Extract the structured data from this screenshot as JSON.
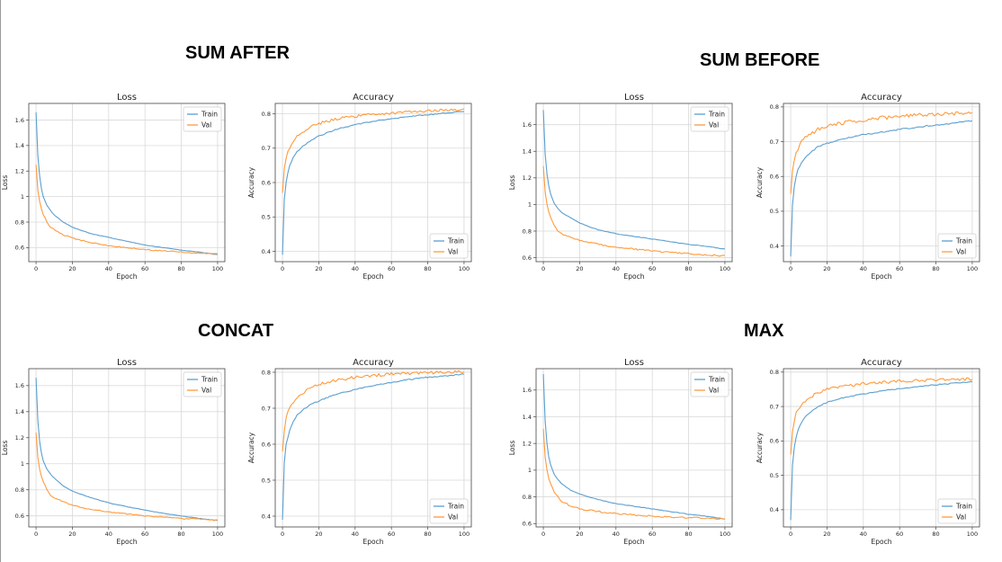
{
  "groups": [
    {
      "title": "SUM AFTER"
    },
    {
      "title": "SUM BEFORE"
    },
    {
      "title": "CONCAT"
    },
    {
      "title": "MAX"
    }
  ],
  "colors": {
    "train": "#5b9fd0",
    "val": "#ff9a3c",
    "grid": "#d9d9d9",
    "frame": "#444444"
  },
  "chart_data": [
    {
      "id": "sum-after-loss",
      "group": "SUM AFTER",
      "type": "line",
      "title": "Loss",
      "xlabel": "Epoch",
      "ylabel": "Loss",
      "xlim": [
        -4,
        104
      ],
      "ylim": [
        0.49,
        1.73
      ],
      "xticks": [
        0,
        20,
        40,
        60,
        80,
        100
      ],
      "yticks": [
        0.6,
        0.8,
        1.0,
        1.2,
        1.4,
        1.6
      ],
      "legend": "top-right",
      "grid": true,
      "noise": 0.003,
      "series": [
        {
          "name": "Train",
          "color": "#5b9fd0",
          "x": [
            0,
            1,
            2,
            3,
            4,
            6,
            8,
            10,
            15,
            20,
            30,
            40,
            50,
            60,
            70,
            80,
            90,
            100
          ],
          "y": [
            1.66,
            1.32,
            1.16,
            1.06,
            1.0,
            0.93,
            0.89,
            0.855,
            0.8,
            0.76,
            0.71,
            0.68,
            0.65,
            0.62,
            0.6,
            0.58,
            0.565,
            0.545
          ]
        },
        {
          "name": "Val",
          "color": "#ff9a3c",
          "x": [
            0,
            1,
            2,
            3,
            4,
            6,
            8,
            10,
            15,
            20,
            30,
            40,
            50,
            60,
            70,
            80,
            90,
            100
          ],
          "y": [
            1.25,
            1.05,
            0.96,
            0.9,
            0.86,
            0.8,
            0.76,
            0.74,
            0.7,
            0.675,
            0.64,
            0.615,
            0.6,
            0.585,
            0.575,
            0.565,
            0.555,
            0.55
          ]
        }
      ]
    },
    {
      "id": "sum-after-accuracy",
      "group": "SUM AFTER",
      "type": "line",
      "title": "Accuracy",
      "xlabel": "Epoch",
      "ylabel": "Accuracy",
      "xlim": [
        -4,
        104
      ],
      "ylim": [
        0.37,
        0.83
      ],
      "xticks": [
        0,
        20,
        40,
        60,
        80,
        100
      ],
      "yticks": [
        0.4,
        0.5,
        0.6,
        0.7,
        0.8
      ],
      "legend": "bottom-right",
      "grid": true,
      "noise": 0.003,
      "series": [
        {
          "name": "Train",
          "color": "#5b9fd0",
          "x": [
            0,
            1,
            2,
            3,
            4,
            6,
            8,
            10,
            15,
            20,
            30,
            40,
            50,
            60,
            70,
            80,
            90,
            100
          ],
          "y": [
            0.39,
            0.55,
            0.6,
            0.63,
            0.65,
            0.675,
            0.69,
            0.7,
            0.72,
            0.735,
            0.755,
            0.768,
            0.778,
            0.786,
            0.792,
            0.797,
            0.802,
            0.806
          ]
        },
        {
          "name": "Val",
          "color": "#ff9a3c",
          "x": [
            0,
            1,
            2,
            3,
            4,
            6,
            8,
            10,
            15,
            20,
            30,
            40,
            50,
            60,
            70,
            80,
            90,
            100
          ],
          "y": [
            0.57,
            0.64,
            0.67,
            0.69,
            0.7,
            0.72,
            0.735,
            0.745,
            0.76,
            0.772,
            0.785,
            0.793,
            0.798,
            0.802,
            0.805,
            0.808,
            0.81,
            0.812
          ]
        }
      ]
    },
    {
      "id": "sum-before-loss",
      "group": "SUM BEFORE",
      "type": "line",
      "title": "Loss",
      "xlabel": "Epoch",
      "ylabel": "Loss",
      "xlim": [
        -4,
        104
      ],
      "ylim": [
        0.57,
        1.76
      ],
      "xticks": [
        0,
        20,
        40,
        60,
        80,
        100
      ],
      "yticks": [
        0.6,
        0.8,
        1.0,
        1.2,
        1.4,
        1.6
      ],
      "legend": "top-right",
      "grid": true,
      "noise": 0.004,
      "series": [
        {
          "name": "Train",
          "color": "#5b9fd0",
          "x": [
            0,
            1,
            2,
            3,
            4,
            6,
            8,
            10,
            15,
            20,
            30,
            40,
            50,
            60,
            70,
            80,
            90,
            100
          ],
          "y": [
            1.71,
            1.38,
            1.23,
            1.14,
            1.08,
            1.01,
            0.97,
            0.94,
            0.9,
            0.86,
            0.81,
            0.78,
            0.76,
            0.74,
            0.72,
            0.7,
            0.685,
            0.665
          ]
        },
        {
          "name": "Val",
          "color": "#ff9a3c",
          "x": [
            0,
            1,
            2,
            3,
            4,
            6,
            8,
            10,
            15,
            20,
            30,
            40,
            50,
            60,
            70,
            80,
            90,
            100
          ],
          "y": [
            1.29,
            1.1,
            1.0,
            0.94,
            0.9,
            0.84,
            0.8,
            0.78,
            0.75,
            0.73,
            0.7,
            0.68,
            0.665,
            0.65,
            0.64,
            0.63,
            0.62,
            0.615
          ]
        }
      ]
    },
    {
      "id": "sum-before-accuracy",
      "group": "SUM BEFORE",
      "type": "line",
      "title": "Accuracy",
      "xlabel": "Epoch",
      "ylabel": "Accuracy",
      "xlim": [
        -4,
        104
      ],
      "ylim": [
        0.355,
        0.81
      ],
      "xticks": [
        0,
        20,
        40,
        60,
        80,
        100
      ],
      "yticks": [
        0.4,
        0.5,
        0.6,
        0.7,
        0.8
      ],
      "legend": "bottom-right",
      "grid": true,
      "noise": 0.004,
      "series": [
        {
          "name": "Train",
          "color": "#5b9fd0",
          "x": [
            0,
            1,
            2,
            3,
            4,
            6,
            8,
            10,
            15,
            20,
            30,
            40,
            50,
            60,
            70,
            80,
            90,
            100
          ],
          "y": [
            0.37,
            0.52,
            0.57,
            0.6,
            0.62,
            0.64,
            0.655,
            0.665,
            0.685,
            0.695,
            0.71,
            0.72,
            0.727,
            0.735,
            0.742,
            0.748,
            0.753,
            0.76
          ]
        },
        {
          "name": "Val",
          "color": "#ff9a3c",
          "x": [
            0,
            1,
            2,
            3,
            4,
            6,
            8,
            10,
            15,
            20,
            30,
            40,
            50,
            60,
            70,
            80,
            90,
            100
          ],
          "y": [
            0.55,
            0.62,
            0.65,
            0.67,
            0.68,
            0.7,
            0.71,
            0.72,
            0.735,
            0.745,
            0.755,
            0.762,
            0.768,
            0.773,
            0.776,
            0.779,
            0.781,
            0.783
          ]
        }
      ]
    },
    {
      "id": "concat-loss",
      "group": "CONCAT",
      "type": "line",
      "title": "Loss",
      "xlabel": "Epoch",
      "ylabel": "Loss",
      "xlim": [
        -4,
        104
      ],
      "ylim": [
        0.515,
        1.73
      ],
      "xticks": [
        0,
        20,
        40,
        60,
        80,
        100
      ],
      "yticks": [
        0.6,
        0.8,
        1.0,
        1.2,
        1.4,
        1.6
      ],
      "legend": "top-right",
      "grid": true,
      "noise": 0.003,
      "series": [
        {
          "name": "Train",
          "color": "#5b9fd0",
          "x": [
            0,
            1,
            2,
            3,
            4,
            6,
            8,
            10,
            15,
            20,
            30,
            40,
            50,
            60,
            70,
            80,
            90,
            100
          ],
          "y": [
            1.66,
            1.33,
            1.17,
            1.08,
            1.02,
            0.96,
            0.92,
            0.89,
            0.83,
            0.79,
            0.74,
            0.7,
            0.67,
            0.645,
            0.62,
            0.6,
            0.58,
            0.565
          ]
        },
        {
          "name": "Val",
          "color": "#ff9a3c",
          "x": [
            0,
            1,
            2,
            3,
            4,
            6,
            8,
            10,
            15,
            20,
            30,
            40,
            50,
            60,
            70,
            80,
            90,
            100
          ],
          "y": [
            1.24,
            1.05,
            0.96,
            0.9,
            0.86,
            0.8,
            0.76,
            0.74,
            0.71,
            0.68,
            0.65,
            0.63,
            0.615,
            0.6,
            0.59,
            0.58,
            0.575,
            0.565
          ]
        }
      ]
    },
    {
      "id": "concat-accuracy",
      "group": "CONCAT",
      "type": "line",
      "title": "Accuracy",
      "xlabel": "Epoch",
      "ylabel": "Accuracy",
      "xlim": [
        -4,
        104
      ],
      "ylim": [
        0.37,
        0.81
      ],
      "xticks": [
        0,
        20,
        40,
        60,
        80,
        100
      ],
      "yticks": [
        0.4,
        0.5,
        0.6,
        0.7,
        0.8
      ],
      "legend": "bottom-right",
      "grid": true,
      "noise": 0.003,
      "series": [
        {
          "name": "Train",
          "color": "#5b9fd0",
          "x": [
            0,
            1,
            2,
            3,
            4,
            6,
            8,
            10,
            15,
            20,
            30,
            40,
            50,
            60,
            70,
            80,
            90,
            100
          ],
          "y": [
            0.39,
            0.55,
            0.6,
            0.62,
            0.64,
            0.665,
            0.68,
            0.69,
            0.71,
            0.72,
            0.74,
            0.752,
            0.763,
            0.772,
            0.78,
            0.786,
            0.79,
            0.795
          ]
        },
        {
          "name": "Val",
          "color": "#ff9a3c",
          "x": [
            0,
            1,
            2,
            3,
            4,
            6,
            8,
            10,
            15,
            20,
            30,
            40,
            50,
            60,
            70,
            80,
            90,
            100
          ],
          "y": [
            0.58,
            0.64,
            0.67,
            0.69,
            0.7,
            0.715,
            0.73,
            0.74,
            0.755,
            0.766,
            0.778,
            0.786,
            0.791,
            0.795,
            0.797,
            0.799,
            0.8,
            0.801
          ]
        }
      ]
    },
    {
      "id": "max-loss",
      "group": "MAX",
      "type": "line",
      "title": "Loss",
      "xlabel": "Epoch",
      "ylabel": "Loss",
      "xlim": [
        -4,
        104
      ],
      "ylim": [
        0.575,
        1.76
      ],
      "xticks": [
        0,
        20,
        40,
        60,
        80,
        100
      ],
      "yticks": [
        0.6,
        0.8,
        1.0,
        1.2,
        1.4,
        1.6
      ],
      "legend": "top-right",
      "grid": true,
      "noise": 0.004,
      "series": [
        {
          "name": "Train",
          "color": "#5b9fd0",
          "x": [
            0,
            1,
            2,
            3,
            4,
            6,
            8,
            10,
            15,
            20,
            30,
            40,
            50,
            60,
            70,
            80,
            90,
            100
          ],
          "y": [
            1.72,
            1.37,
            1.2,
            1.1,
            1.04,
            0.97,
            0.93,
            0.9,
            0.85,
            0.82,
            0.78,
            0.75,
            0.73,
            0.71,
            0.69,
            0.67,
            0.655,
            0.635
          ]
        },
        {
          "name": "Val",
          "color": "#ff9a3c",
          "x": [
            0,
            1,
            2,
            3,
            4,
            6,
            8,
            10,
            15,
            20,
            30,
            40,
            50,
            60,
            70,
            80,
            90,
            100
          ],
          "y": [
            1.31,
            1.1,
            1.0,
            0.94,
            0.9,
            0.83,
            0.8,
            0.77,
            0.73,
            0.71,
            0.69,
            0.675,
            0.665,
            0.655,
            0.65,
            0.645,
            0.64,
            0.635
          ]
        }
      ]
    },
    {
      "id": "max-accuracy",
      "group": "MAX",
      "type": "line",
      "title": "Accuracy",
      "xlabel": "Epoch",
      "ylabel": "Accuracy",
      "xlim": [
        -4,
        104
      ],
      "ylim": [
        0.35,
        0.81
      ],
      "xticks": [
        0,
        20,
        40,
        60,
        80,
        100
      ],
      "yticks": [
        0.4,
        0.5,
        0.6,
        0.7,
        0.8
      ],
      "legend": "bottom-right",
      "grid": true,
      "noise": 0.003,
      "series": [
        {
          "name": "Train",
          "color": "#5b9fd0",
          "x": [
            0,
            1,
            2,
            3,
            4,
            6,
            8,
            10,
            15,
            20,
            30,
            40,
            50,
            60,
            70,
            80,
            90,
            100
          ],
          "y": [
            0.37,
            0.53,
            0.58,
            0.61,
            0.63,
            0.655,
            0.67,
            0.68,
            0.7,
            0.712,
            0.727,
            0.737,
            0.745,
            0.752,
            0.758,
            0.763,
            0.768,
            0.772
          ]
        },
        {
          "name": "Val",
          "color": "#ff9a3c",
          "x": [
            0,
            1,
            2,
            3,
            4,
            6,
            8,
            10,
            15,
            20,
            30,
            40,
            50,
            60,
            70,
            80,
            90,
            100
          ],
          "y": [
            0.56,
            0.63,
            0.66,
            0.68,
            0.69,
            0.705,
            0.715,
            0.725,
            0.74,
            0.75,
            0.76,
            0.766,
            0.77,
            0.773,
            0.775,
            0.777,
            0.779,
            0.78
          ]
        }
      ]
    }
  ]
}
